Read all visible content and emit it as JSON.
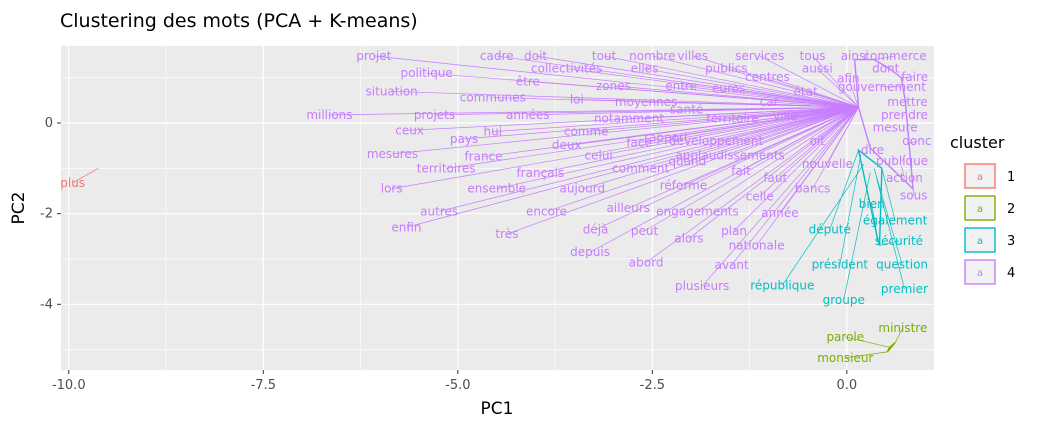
{
  "chart_data": {
    "type": "scatter",
    "title": "Clustering des mots (PCA + K-means)",
    "xlabel": "PC1",
    "ylabel": "PC2",
    "xlim": [
      -10.1,
      1.12
    ],
    "ylim": [
      -5.45,
      1.7
    ],
    "xticks": [
      -10.0,
      -7.5,
      -5.0,
      -2.5,
      0.0
    ],
    "xtick_labels": [
      "-10.0",
      "-7.5",
      "-5.0",
      "-2.5",
      "0.0"
    ],
    "yticks": [
      -4,
      -2,
      0
    ],
    "ytick_labels": [
      "-4",
      "-2",
      "0"
    ],
    "grid": true,
    "legend": {
      "title": "cluster",
      "position": "right",
      "glyph": "a",
      "entries": [
        {
          "label": "1",
          "color": "#F8766D"
        },
        {
          "label": "2",
          "color": "#7CAE00"
        },
        {
          "label": "3",
          "color": "#00BFC4"
        },
        {
          "label": "4",
          "color": "#C77CFF"
        }
      ]
    },
    "clusters": [
      {
        "id": "1",
        "color": "#F8766D",
        "points": [
          {
            "word": "plus",
            "x": -9.62,
            "y": -1.0,
            "lx": -9.95,
            "ly": -1.32
          }
        ]
      },
      {
        "id": "2",
        "color": "#7CAE00",
        "points": [
          {
            "word": "ministre",
            "x": 0.62,
            "y": -4.85,
            "lx": 0.72,
            "ly": -4.52
          },
          {
            "word": "parole",
            "x": 0.55,
            "y": -4.95,
            "lx": -0.02,
            "ly": -4.72
          },
          {
            "word": "monsieur",
            "x": 0.52,
            "y": -5.05,
            "lx": -0.02,
            "ly": -5.18
          }
        ]
      },
      {
        "id": "3",
        "color": "#00BFC4",
        "points": [
          {
            "word": "député",
            "x": 0.15,
            "y": -0.6,
            "lx": -0.22,
            "ly": -2.35
          },
          {
            "word": "président",
            "x": 0.18,
            "y": -0.7,
            "lx": -0.09,
            "ly": -3.12
          },
          {
            "word": "république",
            "x": 0.22,
            "y": -0.9,
            "lx": -0.83,
            "ly": -3.58
          },
          {
            "word": "groupe",
            "x": 0.3,
            "y": -1.1,
            "lx": -0.04,
            "ly": -3.9
          },
          {
            "word": "question",
            "x": 0.35,
            "y": -1.0,
            "lx": 0.71,
            "ly": -3.12
          },
          {
            "word": "premier",
            "x": 0.38,
            "y": -1.2,
            "lx": 0.74,
            "ly": -3.66
          },
          {
            "word": "bien",
            "x": 0.4,
            "y": -2.6,
            "lx": 0.32,
            "ly": -1.79
          },
          {
            "word": "également",
            "x": 0.45,
            "y": -1.0,
            "lx": 0.62,
            "ly": -2.15
          },
          {
            "word": "sécurité",
            "x": 0.42,
            "y": -2.7,
            "lx": 0.67,
            "ly": -2.6
          }
        ]
      },
      {
        "id": "4",
        "color": "#C77CFF",
        "points": [
          {
            "word": "projet",
            "x": 0.15,
            "y": 0.35,
            "lx": -6.08,
            "ly": 1.48
          },
          {
            "word": "cadre",
            "x": 0.15,
            "y": 0.35,
            "lx": -4.5,
            "ly": 1.48
          },
          {
            "word": "doit",
            "x": 0.15,
            "y": 0.35,
            "lx": -4.0,
            "ly": 1.48
          },
          {
            "word": "tout",
            "x": 0.15,
            "y": 0.35,
            "lx": -3.12,
            "ly": 1.48
          },
          {
            "word": "nombre",
            "x": 0.15,
            "y": 0.35,
            "lx": -2.5,
            "ly": 1.48
          },
          {
            "word": "villes",
            "x": 0.15,
            "y": 0.35,
            "lx": -1.98,
            "ly": 1.48
          },
          {
            "word": "services",
            "x": 0.15,
            "y": 0.35,
            "lx": -1.12,
            "ly": 1.48
          },
          {
            "word": "tous",
            "x": 0.15,
            "y": 0.35,
            "lx": -0.44,
            "ly": 1.48
          },
          {
            "word": "ainsi",
            "x": 0.1,
            "y": 1.4,
            "lx": 0.1,
            "ly": 1.48
          },
          {
            "word": "commerce",
            "x": 0.35,
            "y": 1.4,
            "lx": 0.62,
            "ly": 1.48
          },
          {
            "word": "collectivités",
            "x": 0.15,
            "y": 0.35,
            "lx": -3.6,
            "ly": 1.2
          },
          {
            "word": "elles",
            "x": 0.15,
            "y": 0.35,
            "lx": -2.6,
            "ly": 1.2
          },
          {
            "word": "publics",
            "x": 0.15,
            "y": 0.35,
            "lx": -1.55,
            "ly": 1.2
          },
          {
            "word": "aussi",
            "x": 0.15,
            "y": 0.35,
            "lx": -0.38,
            "ly": 1.2
          },
          {
            "word": "dont",
            "x": 0.55,
            "y": 1.2,
            "lx": 0.5,
            "ly": 1.2
          },
          {
            "word": "politique",
            "x": 0.15,
            "y": 0.35,
            "lx": -5.4,
            "ly": 1.1
          },
          {
            "word": "centres",
            "x": 0.15,
            "y": 0.35,
            "lx": -1.02,
            "ly": 1.02
          },
          {
            "word": "faire",
            "x": 0.7,
            "y": 1.0,
            "lx": 0.87,
            "ly": 1.02
          },
          {
            "word": "être",
            "x": 0.15,
            "y": 0.35,
            "lx": -4.1,
            "ly": 0.92
          },
          {
            "word": "afin",
            "x": 0.15,
            "y": 0.35,
            "lx": 0.02,
            "ly": 0.98
          },
          {
            "word": "zones",
            "x": 0.15,
            "y": 0.35,
            "lx": -3.0,
            "ly": 0.82
          },
          {
            "word": "entre",
            "x": 0.15,
            "y": 0.35,
            "lx": -2.13,
            "ly": 0.82
          },
          {
            "word": "euros",
            "x": 0.15,
            "y": 0.35,
            "lx": -1.52,
            "ly": 0.76
          },
          {
            "word": "état",
            "x": 0.15,
            "y": 0.35,
            "lx": -0.53,
            "ly": 0.7
          },
          {
            "word": "gouvernement",
            "x": 0.7,
            "y": 0.8,
            "lx": 0.45,
            "ly": 0.8
          },
          {
            "word": "situation",
            "x": 0.15,
            "y": 0.35,
            "lx": -5.85,
            "ly": 0.7
          },
          {
            "word": "communes",
            "x": 0.15,
            "y": 0.35,
            "lx": -4.55,
            "ly": 0.56
          },
          {
            "word": "loi",
            "x": 0.15,
            "y": 0.35,
            "lx": -3.47,
            "ly": 0.52
          },
          {
            "word": "moyennes",
            "x": 0.15,
            "y": 0.35,
            "lx": -2.58,
            "ly": 0.46
          },
          {
            "word": "car",
            "x": 0.15,
            "y": 0.35,
            "lx": -1.0,
            "ly": 0.46
          },
          {
            "word": "mettre",
            "x": 0.75,
            "y": 0.5,
            "lx": 0.78,
            "ly": 0.46
          },
          {
            "word": "santé",
            "x": 0.15,
            "y": 0.35,
            "lx": -2.06,
            "ly": 0.3
          },
          {
            "word": "millions",
            "x": 0.15,
            "y": 0.35,
            "lx": -6.65,
            "ly": 0.18
          },
          {
            "word": "projets",
            "x": 0.15,
            "y": 0.35,
            "lx": -5.3,
            "ly": 0.18
          },
          {
            "word": "années",
            "x": 0.15,
            "y": 0.35,
            "lx": -4.1,
            "ly": 0.18
          },
          {
            "word": "notamment",
            "x": 0.15,
            "y": 0.35,
            "lx": -2.8,
            "ly": 0.1
          },
          {
            "word": "territoire",
            "x": 0.15,
            "y": 0.35,
            "lx": -1.47,
            "ly": 0.1
          },
          {
            "word": "ville",
            "x": 0.15,
            "y": 0.35,
            "lx": -0.79,
            "ly": 0.16
          },
          {
            "word": "prendre",
            "x": 0.7,
            "y": 0.15,
            "lx": 0.74,
            "ly": 0.18
          },
          {
            "word": "ceux",
            "x": 0.15,
            "y": 0.35,
            "lx": -5.62,
            "ly": -0.16
          },
          {
            "word": "hui",
            "x": 0.15,
            "y": 0.35,
            "lx": -4.55,
            "ly": -0.19
          },
          {
            "word": "comme",
            "x": 0.15,
            "y": 0.35,
            "lx": -3.35,
            "ly": -0.19
          },
          {
            "word": "rapport",
            "x": 0.15,
            "y": 0.35,
            "lx": -2.32,
            "ly": -0.32
          },
          {
            "word": "mesure",
            "x": 0.65,
            "y": -0.1,
            "lx": 0.62,
            "ly": -0.1
          },
          {
            "word": "pays",
            "x": 0.15,
            "y": 0.35,
            "lx": -4.92,
            "ly": -0.35
          },
          {
            "word": "face",
            "x": 0.15,
            "y": 0.35,
            "lx": -2.67,
            "ly": -0.43
          },
          {
            "word": "développement",
            "x": 0.15,
            "y": 0.35,
            "lx": -1.68,
            "ly": -0.4
          },
          {
            "word": "oit",
            "x": 0.15,
            "y": 0.35,
            "lx": -0.38,
            "ly": -0.4
          },
          {
            "word": "donc",
            "x": 0.8,
            "y": -0.45,
            "lx": 0.9,
            "ly": -0.4
          },
          {
            "word": "deux",
            "x": 0.15,
            "y": 0.35,
            "lx": -3.6,
            "ly": -0.48
          },
          {
            "word": "dire",
            "x": 0.3,
            "y": -0.55,
            "lx": 0.33,
            "ly": -0.6
          },
          {
            "word": "mesures",
            "x": 0.15,
            "y": 0.35,
            "lx": -5.84,
            "ly": -0.68
          },
          {
            "word": "france",
            "x": 0.15,
            "y": 0.35,
            "lx": -4.67,
            "ly": -0.74
          },
          {
            "word": "celui",
            "x": 0.15,
            "y": 0.35,
            "lx": -3.19,
            "ly": -0.72
          },
          {
            "word": "quand",
            "x": 0.15,
            "y": 0.35,
            "lx": -2.05,
            "ly": -0.85
          },
          {
            "word": "applaudissements",
            "x": 0.15,
            "y": 0.35,
            "lx": -1.5,
            "ly": -0.72
          },
          {
            "word": "publique",
            "x": 0.75,
            "y": -0.7,
            "lx": 0.71,
            "ly": -0.84
          },
          {
            "word": "nouvelle",
            "x": 0.15,
            "y": 0.35,
            "lx": -0.25,
            "ly": -0.9
          },
          {
            "word": "territoires",
            "x": 0.15,
            "y": 0.35,
            "lx": -5.15,
            "ly": -1.0
          },
          {
            "word": "comment",
            "x": 0.15,
            "y": 0.35,
            "lx": -2.65,
            "ly": -1.0
          },
          {
            "word": "fait",
            "x": 0.15,
            "y": 0.35,
            "lx": -1.36,
            "ly": -1.06
          },
          {
            "word": "français",
            "x": 0.15,
            "y": 0.35,
            "lx": -3.94,
            "ly": -1.1
          },
          {
            "word": "action",
            "x": 0.7,
            "y": -0.95,
            "lx": 0.74,
            "ly": -1.21
          },
          {
            "word": "faut",
            "x": 0.15,
            "y": 0.35,
            "lx": -0.92,
            "ly": -1.21
          },
          {
            "word": "lors",
            "x": 0.15,
            "y": 0.35,
            "lx": -5.85,
            "ly": -1.45
          },
          {
            "word": "ensemble",
            "x": 0.15,
            "y": 0.35,
            "lx": -4.5,
            "ly": -1.45
          },
          {
            "word": "aujourd",
            "x": 0.15,
            "y": 0.35,
            "lx": -3.4,
            "ly": -1.45
          },
          {
            "word": "réforme",
            "x": 0.15,
            "y": 0.35,
            "lx": -2.1,
            "ly": -1.38
          },
          {
            "word": "bancs",
            "x": 0.15,
            "y": 0.35,
            "lx": -0.44,
            "ly": -1.45
          },
          {
            "word": "sous",
            "x": 0.85,
            "y": -1.45,
            "lx": 0.86,
            "ly": -1.6
          },
          {
            "word": "celle",
            "x": 0.15,
            "y": 0.35,
            "lx": -1.12,
            "ly": -1.62
          },
          {
            "word": "autres",
            "x": 0.15,
            "y": 0.35,
            "lx": -5.24,
            "ly": -1.95
          },
          {
            "word": "encore",
            "x": 0.15,
            "y": 0.35,
            "lx": -3.86,
            "ly": -1.95
          },
          {
            "word": "ailleurs",
            "x": 0.15,
            "y": 0.35,
            "lx": -2.81,
            "ly": -1.88
          },
          {
            "word": "engagements",
            "x": 0.15,
            "y": 0.35,
            "lx": -1.92,
            "ly": -1.95
          },
          {
            "word": "année",
            "x": 0.15,
            "y": 0.35,
            "lx": -0.86,
            "ly": -1.98
          },
          {
            "word": "enfin",
            "x": 0.15,
            "y": 0.35,
            "lx": -5.66,
            "ly": -2.3
          },
          {
            "word": "très",
            "x": 0.15,
            "y": 0.35,
            "lx": -4.37,
            "ly": -2.45
          },
          {
            "word": "déjà",
            "x": 0.15,
            "y": 0.35,
            "lx": -3.23,
            "ly": -2.35
          },
          {
            "word": "peut",
            "x": 0.15,
            "y": 0.35,
            "lx": -2.6,
            "ly": -2.38
          },
          {
            "word": "plan",
            "x": 0.15,
            "y": 0.35,
            "lx": -1.45,
            "ly": -2.38
          },
          {
            "word": "alors",
            "x": 0.15,
            "y": 0.35,
            "lx": -2.03,
            "ly": -2.55
          },
          {
            "word": "nationale",
            "x": 0.15,
            "y": 0.35,
            "lx": -1.16,
            "ly": -2.7
          },
          {
            "word": "depuis",
            "x": 0.15,
            "y": 0.35,
            "lx": -3.3,
            "ly": -2.85
          },
          {
            "word": "abord",
            "x": 0.15,
            "y": 0.35,
            "lx": -2.58,
            "ly": -3.08
          },
          {
            "word": "avant",
            "x": 0.15,
            "y": 0.35,
            "lx": -1.48,
            "ly": -3.13
          },
          {
            "word": "plusieurs",
            "x": 0.15,
            "y": 0.35,
            "lx": -1.86,
            "ly": -3.6
          }
        ]
      }
    ]
  }
}
